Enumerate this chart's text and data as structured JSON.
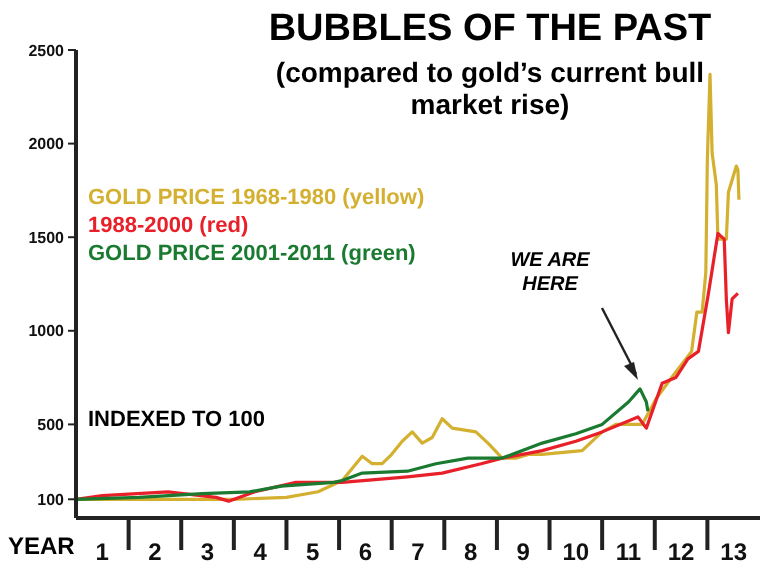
{
  "chart_data": {
    "type": "line",
    "title": "BUBBLES OF THE PAST",
    "subtitle": "(compared to gold’s current bull market rise)",
    "xlabel": "YEAR",
    "xlim": [
      0,
      13
    ],
    "xticks": [
      {
        "value": 0.5,
        "label": "1"
      },
      {
        "value": 1,
        "label": null
      },
      {
        "value": 1.5,
        "label": "2"
      },
      {
        "value": 2,
        "label": null
      },
      {
        "value": 2.5,
        "label": "3"
      },
      {
        "value": 3,
        "label": null
      },
      {
        "value": 3.5,
        "label": "4"
      },
      {
        "value": 4,
        "label": null
      },
      {
        "value": 4.5,
        "label": "5"
      },
      {
        "value": 5,
        "label": null
      },
      {
        "value": 5.5,
        "label": "6"
      },
      {
        "value": 6,
        "label": null
      },
      {
        "value": 6.5,
        "label": "7"
      },
      {
        "value": 7,
        "label": null
      },
      {
        "value": 7.5,
        "label": "8"
      },
      {
        "value": 8,
        "label": null
      },
      {
        "value": 8.5,
        "label": "9"
      },
      {
        "value": 9,
        "label": null
      },
      {
        "value": 9.5,
        "label": "10"
      },
      {
        "value": 10,
        "label": null
      },
      {
        "value": 10.5,
        "label": "11"
      },
      {
        "value": 11,
        "label": null
      },
      {
        "value": 11.5,
        "label": "12"
      },
      {
        "value": 12,
        "label": null
      },
      {
        "value": 12.5,
        "label": "13"
      }
    ],
    "ylim": [
      0,
      2500
    ],
    "yticks": [
      100,
      500,
      1000,
      1500,
      2000,
      2500
    ],
    "grid": false,
    "legend": "top left",
    "marker": "none",
    "series": [
      {
        "name": "GOLD PRICE 1968-1980 (yellow)",
        "color": "#d4b030",
        "x": [
          0,
          1.5,
          3.0,
          4.0,
          4.6,
          5.06,
          5.44,
          5.63,
          5.82,
          6.0,
          6.2,
          6.39,
          6.58,
          6.77,
          6.96,
          7.15,
          7.6,
          7.83,
          8.1,
          8.37,
          8.6,
          8.86,
          9.62,
          10.0,
          10.26,
          10.76,
          11.03,
          11.4,
          11.7,
          11.8,
          11.9,
          11.97,
          12.0,
          12.05,
          12.09,
          12.17,
          12.2,
          12.36,
          12.4,
          12.55,
          12.58,
          12.6
        ],
        "values": [
          100,
          100,
          100,
          110,
          140,
          200,
          330,
          290,
          290,
          340,
          410,
          460,
          400,
          430,
          530,
          480,
          460,
          400,
          320,
          320,
          340,
          340,
          360,
          460,
          500,
          500,
          640,
          780,
          890,
          1100,
          1100,
          1310,
          1920,
          2370,
          1950,
          1780,
          1490,
          1490,
          1740,
          1880,
          1860,
          1700
        ]
      },
      {
        "name": "1988-2000 (red)",
        "color": "#e8202a",
        "x": [
          0,
          0.5,
          1.75,
          2.66,
          2.9,
          3.4,
          4.18,
          5.06,
          6.3,
          6.96,
          7.7,
          8.1,
          8.86,
          9.5,
          10.0,
          10.68,
          10.84,
          11.14,
          11.4,
          11.63,
          11.83,
          12.02,
          12.2,
          12.32,
          12.36,
          12.4,
          12.47,
          12.58
        ],
        "values": [
          100,
          120,
          140,
          110,
          90,
          140,
          190,
          190,
          220,
          240,
          290,
          320,
          360,
          410,
          460,
          540,
          480,
          720,
          750,
          850,
          890,
          1200,
          1520,
          1490,
          1170,
          990,
          1170,
          1200
        ]
      },
      {
        "name": "GOLD PRICE 2001-2011 (green)",
        "color": "#1a7a30",
        "x": [
          0,
          1.2,
          2.4,
          3.3,
          3.9,
          4.9,
          5.06,
          5.44,
          6.3,
          6.84,
          7.45,
          8.1,
          8.86,
          9.5,
          10.0,
          10.5,
          10.72,
          10.84,
          10.87
        ],
        "values": [
          100,
          110,
          130,
          140,
          170,
          190,
          200,
          240,
          250,
          290,
          320,
          320,
          400,
          450,
          500,
          620,
          690,
          620,
          570
        ]
      }
    ],
    "annotations": [
      {
        "text": "WE ARE HERE",
        "x": 10.72,
        "y": 690
      },
      "INDEXED TO 100"
    ]
  }
}
